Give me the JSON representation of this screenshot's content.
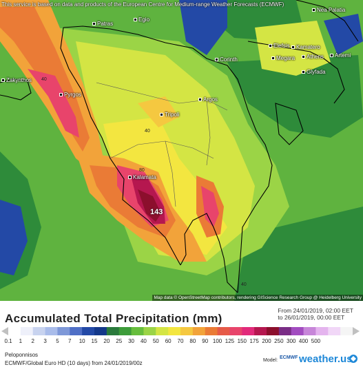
{
  "map": {
    "disclaimer": "This service is based on data and products of the European Centre for Medium-range Weather Forecasts (ECMWF)",
    "attribution": "Map data © OpenStreetMap contributors, rendering GIScience Research Group @ Heidelberg University",
    "cities": [
      "Patras",
      "Egio",
      "Nea Palatia",
      "Elefsis",
      "Kamatero",
      "Megara",
      "Athens",
      "Artemi",
      "Corinth",
      "Glyfada",
      "Zakynthos",
      "Pyrgos",
      "Argos",
      "Tripoli",
      "Kalamata"
    ],
    "values": [
      "40",
      "40",
      "80",
      "40"
    ],
    "peak_value": "143"
  },
  "legend": {
    "title": "Accumulated Total Precipitation (mm)",
    "from_label": "From 24/01/2019, 02:00 EET",
    "to_label": "to 26/01/2019, 00:00 EET",
    "ticks": [
      "0.1",
      "1",
      "2",
      "3",
      "5",
      "7",
      "10",
      "15",
      "20",
      "25",
      "30",
      "40",
      "50",
      "60",
      "70",
      "80",
      "90",
      "100",
      "125",
      "150",
      "175",
      "200",
      "250",
      "300",
      "400",
      "500"
    ],
    "colors": [
      "#c0c0c0",
      "#ffffff",
      "#eef0fa",
      "#c8d3ef",
      "#a9bcea",
      "#7e98d8",
      "#4f6fc6",
      "#2349a6",
      "#14388a",
      "#2a7a3c",
      "#3d9c3a",
      "#67be3d",
      "#9bd446",
      "#d4e544",
      "#f3e640",
      "#f5c840",
      "#f2a33a",
      "#ea7b36",
      "#e65a48",
      "#e8446b",
      "#e22a7a",
      "#b5174f",
      "#8c0f2d",
      "#7a2d86",
      "#a24cc0",
      "#c786d9",
      "#e4b4ee",
      "#f1d7f7",
      "#f5f5f5",
      "#c0c0c0"
    ],
    "region": "Peloponnisos",
    "model_line": "ECMWF/Global Euro HD (10 days) from 24/01/2019/00z",
    "model_label": "Model:",
    "ecmwf_logo": "ECMWF",
    "brand": "weather.us",
    "brand_icon": "weather-us-logo-icon"
  }
}
